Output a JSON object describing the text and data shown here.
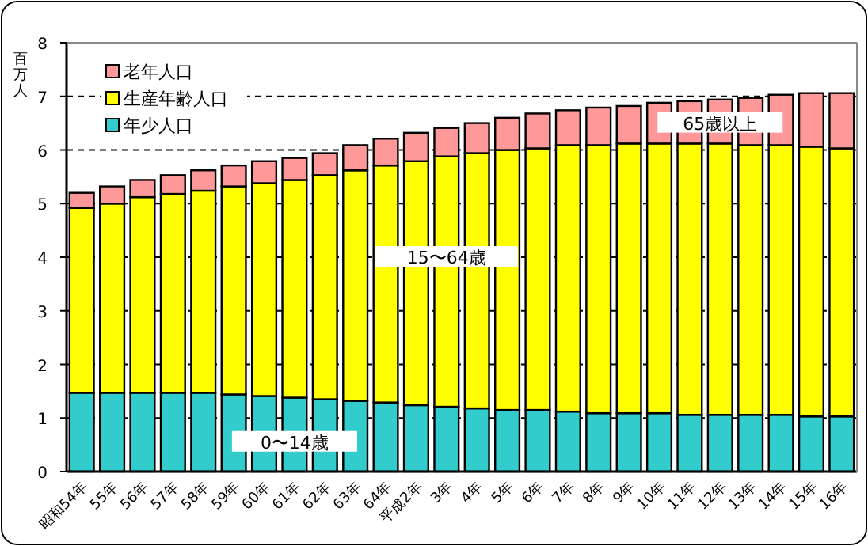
{
  "chart_data": {
    "type": "bar",
    "stacked": true,
    "ylabel": "百万人",
    "categories": [
      "昭和54年",
      "55年",
      "56年",
      "57年",
      "58年",
      "59年",
      "60年",
      "61年",
      "62年",
      "63年",
      "64年",
      "平成2年",
      "3年",
      "4年",
      "5年",
      "6年",
      "7年",
      "8年",
      "9年",
      "10年",
      "11年",
      "12年",
      "13年",
      "14年",
      "15年",
      "16年"
    ],
    "series": [
      {
        "name": "年少人口",
        "color": "#33cccc",
        "values": [
          1.47,
          1.47,
          1.47,
          1.47,
          1.47,
          1.44,
          1.41,
          1.38,
          1.35,
          1.32,
          1.29,
          1.24,
          1.21,
          1.18,
          1.15,
          1.15,
          1.12,
          1.09,
          1.09,
          1.09,
          1.06,
          1.06,
          1.06,
          1.06,
          1.03,
          1.03
        ]
      },
      {
        "name": "生産年齢人口",
        "color": "#ffff00",
        "values": [
          3.45,
          3.53,
          3.65,
          3.71,
          3.77,
          3.88,
          3.97,
          4.06,
          4.18,
          4.3,
          4.42,
          4.55,
          4.67,
          4.76,
          4.85,
          4.88,
          4.97,
          5.0,
          5.03,
          5.03,
          5.06,
          5.06,
          5.03,
          5.03,
          5.03,
          5.0
        ]
      },
      {
        "name": "老年人口",
        "color": "#ff9999",
        "values": [
          0.28,
          0.32,
          0.32,
          0.35,
          0.38,
          0.39,
          0.41,
          0.41,
          0.41,
          0.47,
          0.5,
          0.53,
          0.53,
          0.56,
          0.6,
          0.65,
          0.65,
          0.7,
          0.7,
          0.76,
          0.79,
          0.82,
          0.88,
          0.94,
          1.0,
          1.03
        ]
      }
    ],
    "ylim": [
      0,
      8
    ],
    "yticks": [
      0,
      1,
      2,
      3,
      4,
      5,
      6,
      7,
      8
    ],
    "grid": "y",
    "legend": "top left",
    "annotations": [
      {
        "text": "0〜14歳",
        "x": "61年",
        "y": 0.55
      },
      {
        "text": "15〜64歳",
        "x": "3年",
        "y": 4.0
      },
      {
        "text": "65歳以上",
        "x": "12年",
        "y": 6.5
      }
    ]
  }
}
